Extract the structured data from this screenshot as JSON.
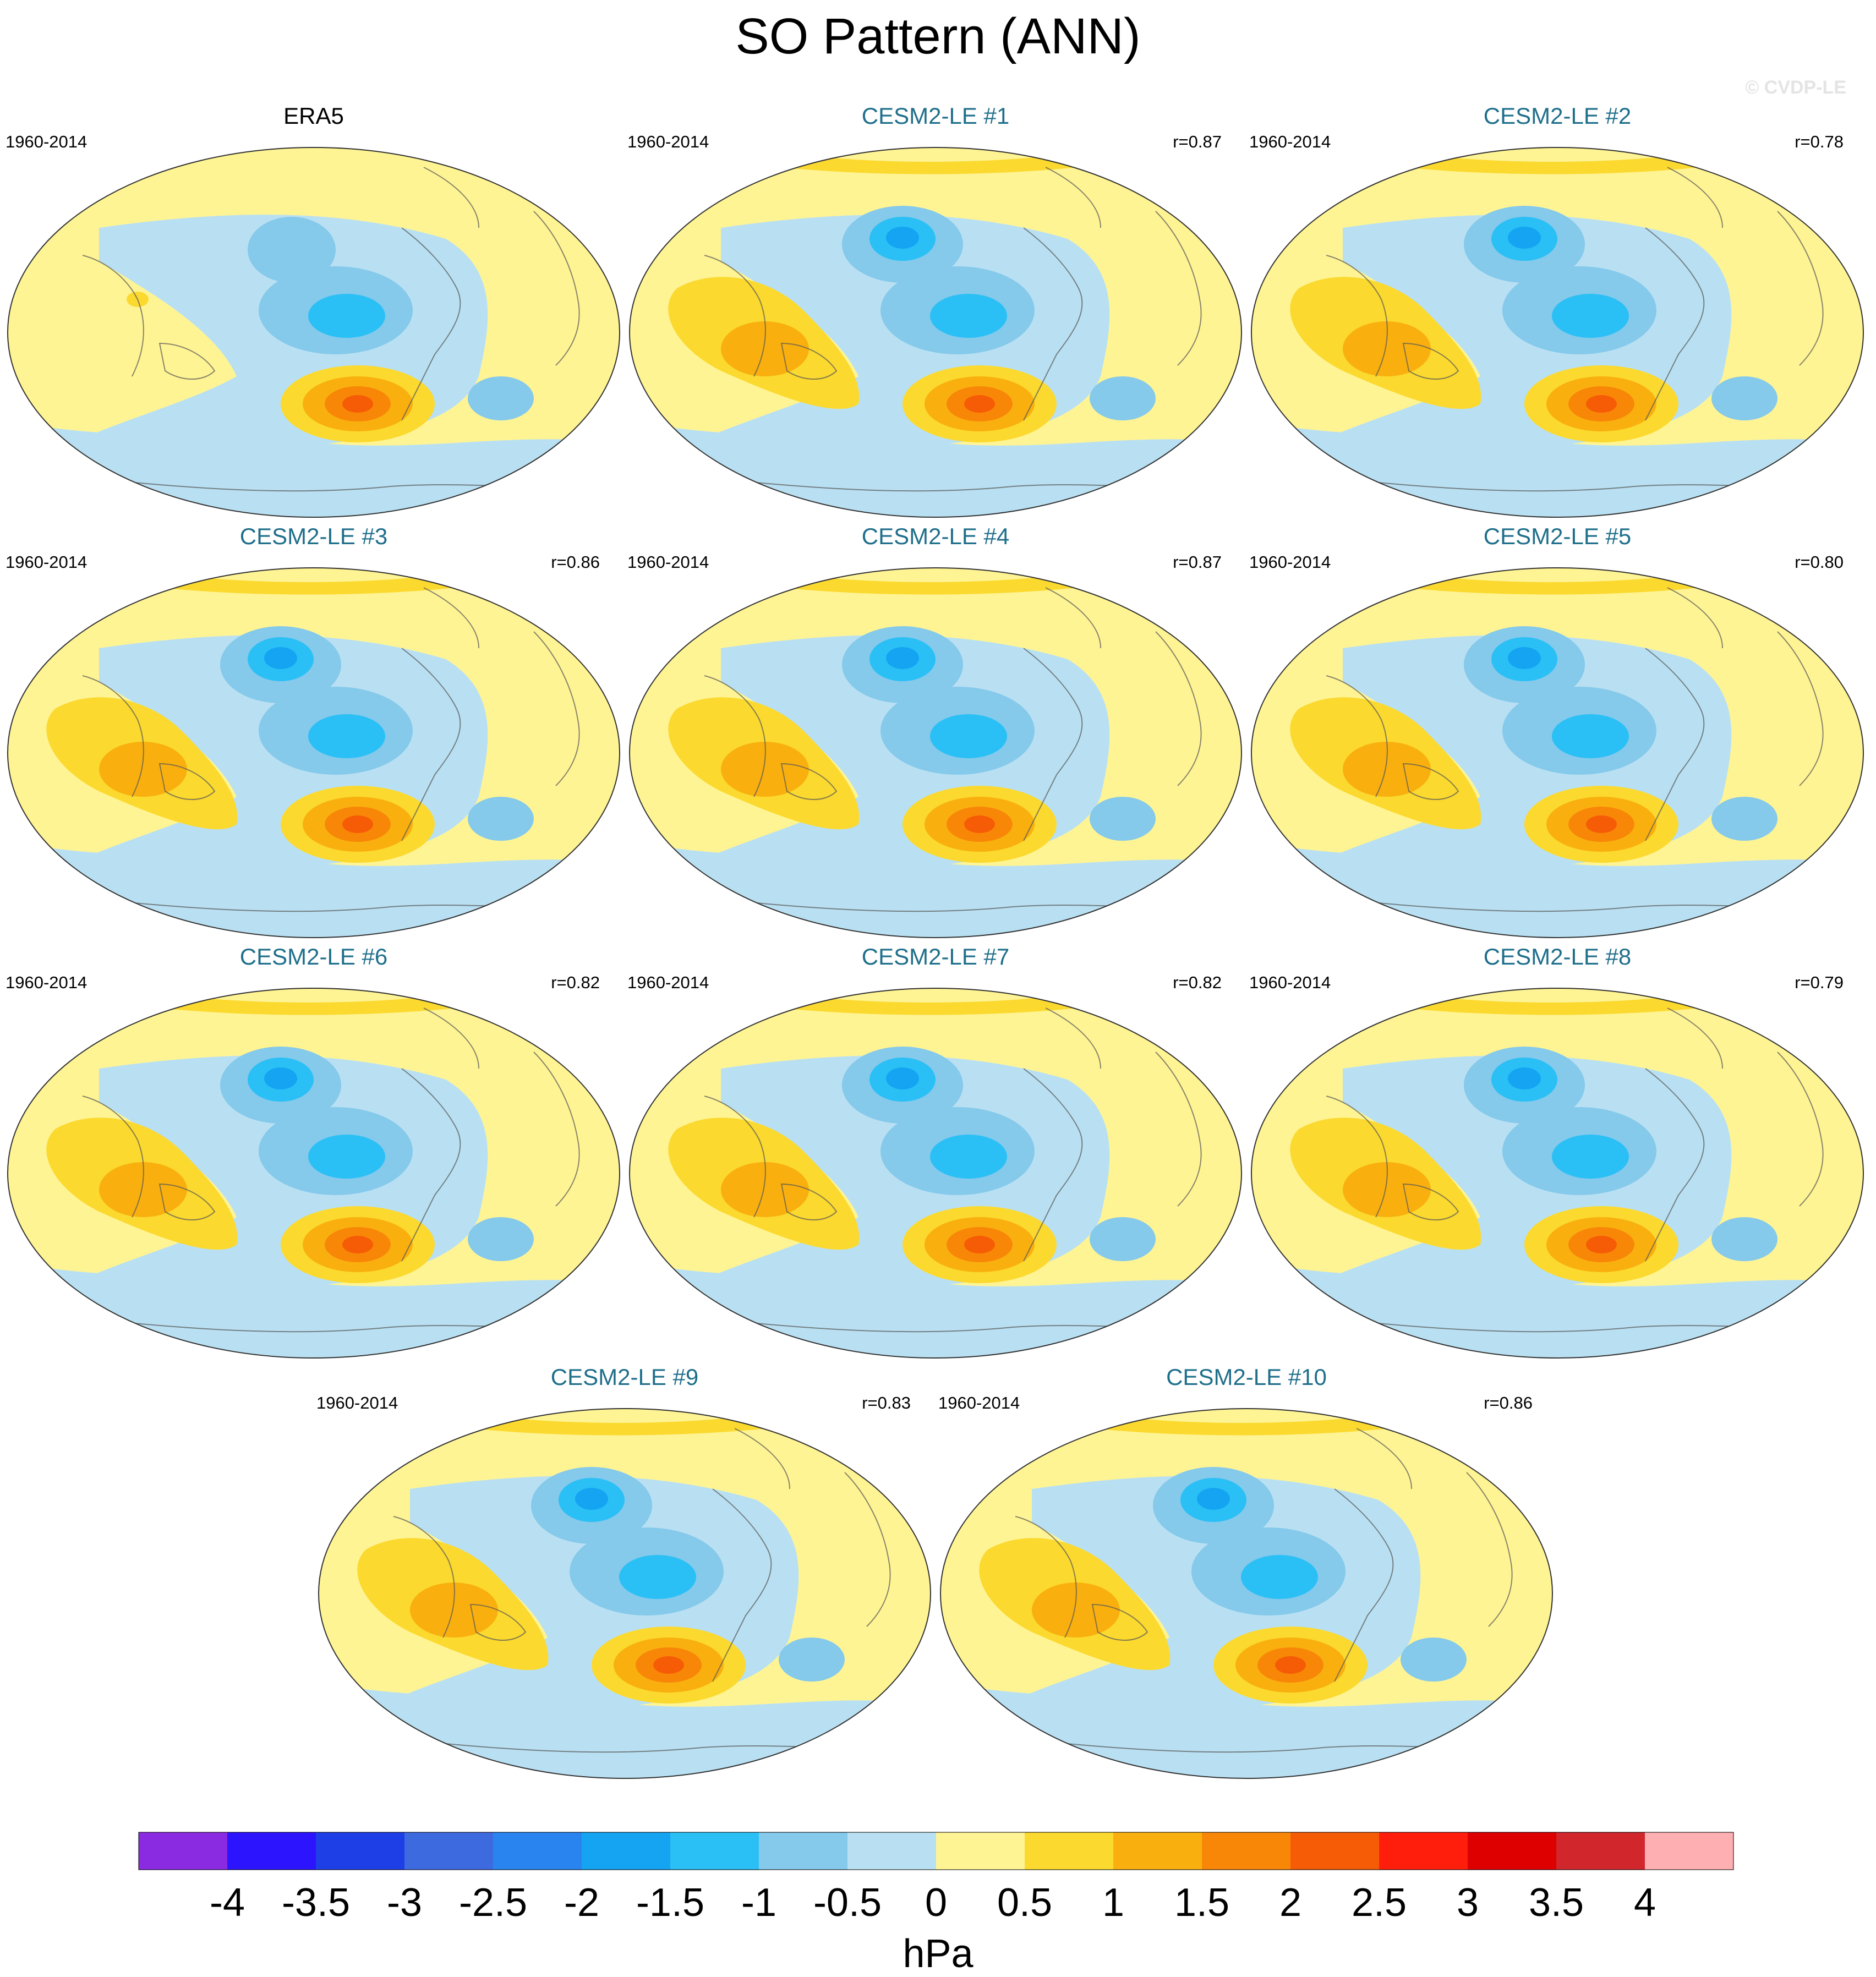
{
  "title": "SO Pattern (ANN)",
  "watermark": "© CVDP-LE",
  "chart_data": {
    "type": "contour-map",
    "title": "SO Pattern (ANN)",
    "projection": "Robinson (Pacific-centered)",
    "unit": "hPa",
    "colorbar": {
      "levels": [
        "-4",
        "-3.5",
        "-3",
        "-2.5",
        "-2",
        "-1.5",
        "-1",
        "-0.5",
        "0",
        "0.5",
        "1",
        "1.5",
        "2",
        "2.5",
        "3",
        "3.5",
        "4"
      ],
      "colors": [
        "#8a2be2",
        "#2d14ff",
        "#1f3fe6",
        "#3e6ae0",
        "#2a84f0",
        "#14a4f2",
        "#2ac0f5",
        "#85c9eb",
        "#b9e0f2",
        "#fff494",
        "#fbd92f",
        "#f9b00f",
        "#f88708",
        "#f65c05",
        "#ff1e0c",
        "#de0000",
        "#d0262c",
        "#fdafb1"
      ]
    },
    "panels": [
      {
        "name": "ERA5",
        "period": "1960-2014",
        "r": "",
        "obs": true
      },
      {
        "name": "CESM2-LE #1",
        "period": "1960-2014",
        "r": "r=0.87",
        "obs": false
      },
      {
        "name": "CESM2-LE #2",
        "period": "1960-2014",
        "r": "r=0.78",
        "obs": false
      },
      {
        "name": "CESM2-LE #3",
        "period": "1960-2014",
        "r": "r=0.86",
        "obs": false
      },
      {
        "name": "CESM2-LE #4",
        "period": "1960-2014",
        "r": "r=0.87",
        "obs": false
      },
      {
        "name": "CESM2-LE #5",
        "period": "1960-2014",
        "r": "r=0.80",
        "obs": false
      },
      {
        "name": "CESM2-LE #6",
        "period": "1960-2014",
        "r": "r=0.82",
        "obs": false
      },
      {
        "name": "CESM2-LE #7",
        "period": "1960-2014",
        "r": "r=0.82",
        "obs": false
      },
      {
        "name": "CESM2-LE #8",
        "period": "1960-2014",
        "r": "r=0.79",
        "obs": false
      },
      {
        "name": "CESM2-LE #9",
        "period": "1960-2014",
        "r": "r=0.83",
        "obs": false
      },
      {
        "name": "CESM2-LE #10",
        "period": "1960-2014",
        "r": "r=0.86",
        "obs": false
      }
    ]
  }
}
